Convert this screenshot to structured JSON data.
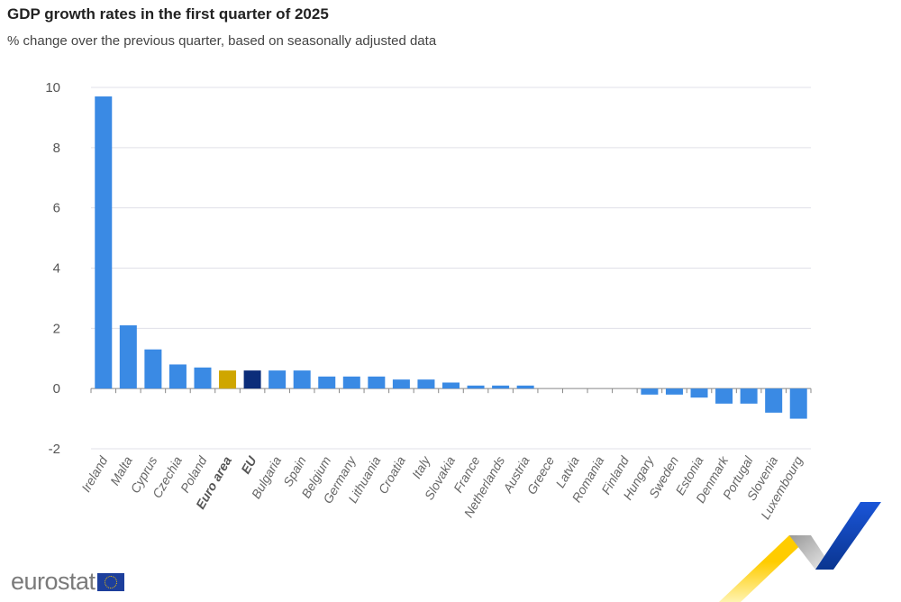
{
  "title": "GDP growth rates in the first quarter of 2025",
  "subtitle": "% change over the previous quarter, based on seasonally adjusted data",
  "logo": "eurostat",
  "colors": {
    "country": "#3a8ae4",
    "euro_area": "#cfa600",
    "eu": "#0b2d7a",
    "grid": "#e0e0e8"
  },
  "chart_data": {
    "type": "bar",
    "title": "GDP growth rates in the first quarter of 2025",
    "subtitle": "% change over the previous quarter, based on seasonally adjusted data",
    "xlabel": "",
    "ylabel": "",
    "ylim": [
      -2,
      10
    ],
    "yticks": [
      -2,
      0,
      2,
      4,
      6,
      8,
      10
    ],
    "grid": true,
    "categories": [
      "Ireland",
      "Malta",
      "Cyprus",
      "Czechia",
      "Poland",
      "Euro area",
      "EU",
      "Bulgaria",
      "Spain",
      "Belgium",
      "Germany",
      "Lithuania",
      "Croatia",
      "Italy",
      "Slovakia",
      "France",
      "Netherlands",
      "Austria",
      "Greece",
      "Latvia",
      "Romania",
      "Finland",
      "Hungary",
      "Sweden",
      "Estonia",
      "Denmark",
      "Portugal",
      "Slovenia",
      "Luxembourg"
    ],
    "values": [
      9.7,
      2.1,
      1.3,
      0.8,
      0.7,
      0.6,
      0.6,
      0.6,
      0.6,
      0.4,
      0.4,
      0.4,
      0.3,
      0.3,
      0.2,
      0.1,
      0.1,
      0.1,
      0,
      0,
      0,
      0,
      -0.2,
      -0.2,
      -0.3,
      -0.5,
      -0.5,
      -0.8,
      -1.0
    ],
    "highlighted": [
      "Euro area",
      "EU"
    ]
  }
}
